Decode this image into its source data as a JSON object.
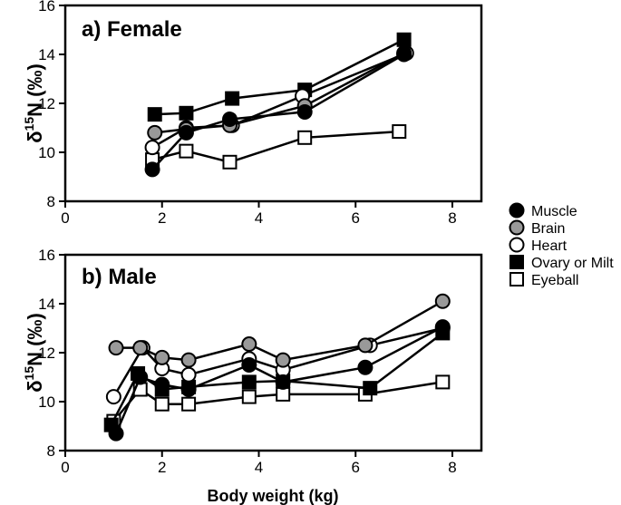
{
  "chart_data": [
    {
      "type": "line",
      "panel_title": "a) Female",
      "ylabel_main": "δ",
      "ylabel_sup": "15",
      "ylabel_rest": "N (‰)",
      "xlim": [
        0,
        8.6
      ],
      "ylim": [
        8,
        16
      ],
      "xticks": [
        0,
        2,
        4,
        6,
        8
      ],
      "yticks": [
        8,
        10,
        12,
        14,
        16
      ],
      "series": [
        {
          "name": "Muscle",
          "marker": "circle",
          "fill": "#000000",
          "x": [
            1.8,
            2.5,
            3.4,
            4.95,
            7.0
          ],
          "y": [
            9.3,
            10.8,
            11.35,
            11.65,
            14.0
          ]
        },
        {
          "name": "Brain",
          "marker": "circle",
          "fill": "#999999",
          "x": [
            1.85,
            2.5,
            3.4,
            4.95,
            7.0
          ],
          "y": [
            10.8,
            10.95,
            11.1,
            11.9,
            14.05
          ]
        },
        {
          "name": "Heart",
          "marker": "circle",
          "fill": "#ffffff",
          "x": [
            1.8,
            2.5,
            3.45,
            4.9,
            7.05
          ],
          "y": [
            10.2,
            11.0,
            11.1,
            12.3,
            14.05
          ]
        },
        {
          "name": "Ovary or Milt",
          "marker": "square",
          "fill": "#000000",
          "x": [
            1.85,
            2.5,
            3.45,
            4.95,
            7.0
          ],
          "y": [
            11.55,
            11.6,
            12.2,
            12.55,
            14.6
          ]
        },
        {
          "name": "Eyeball",
          "marker": "square",
          "fill": "#ffffff",
          "x": [
            1.8,
            2.5,
            3.4,
            4.95,
            6.9
          ],
          "y": [
            9.7,
            10.05,
            9.6,
            10.6,
            10.85
          ]
        }
      ]
    },
    {
      "type": "line",
      "panel_title": "b) Male",
      "xlabel": "Body weight (kg)",
      "ylabel_main": "δ",
      "ylabel_sup": "15",
      "ylabel_rest": "N (‰)",
      "xlim": [
        0,
        8.6
      ],
      "ylim": [
        8,
        16
      ],
      "xticks": [
        0,
        2,
        4,
        6,
        8
      ],
      "yticks": [
        8,
        10,
        12,
        14,
        16
      ],
      "series": [
        {
          "name": "Muscle",
          "marker": "circle",
          "fill": "#000000",
          "x": [
            1.05,
            1.55,
            2.0,
            2.55,
            3.8,
            4.5,
            6.2,
            7.8
          ],
          "y": [
            8.7,
            11.0,
            10.7,
            10.5,
            11.5,
            10.8,
            11.4,
            13.05
          ]
        },
        {
          "name": "Brain",
          "marker": "circle",
          "fill": "#999999",
          "x": [
            1.05,
            1.55,
            2.0,
            2.55,
            3.8,
            4.5,
            6.2,
            7.8
          ],
          "y": [
            12.2,
            12.2,
            11.8,
            11.7,
            12.35,
            11.7,
            12.3,
            14.1
          ]
        },
        {
          "name": "Heart",
          "marker": "circle",
          "fill": "#ffffff",
          "x": [
            1.0,
            1.6,
            2.0,
            2.55,
            3.8,
            4.5,
            6.3,
            7.8
          ],
          "y": [
            10.2,
            12.2,
            11.35,
            11.1,
            11.75,
            11.3,
            12.3,
            13.0
          ]
        },
        {
          "name": "Ovary or Milt",
          "marker": "square",
          "fill": "#000000",
          "x": [
            0.95,
            1.5,
            2.0,
            2.55,
            3.8,
            4.5,
            6.3,
            7.8
          ],
          "y": [
            9.05,
            11.15,
            10.5,
            10.6,
            10.8,
            10.85,
            10.55,
            12.8
          ]
        },
        {
          "name": "Eyeball",
          "marker": "square",
          "fill": "#ffffff",
          "x": [
            1.0,
            1.55,
            2.0,
            2.55,
            3.8,
            4.5,
            6.2,
            7.8
          ],
          "y": [
            9.2,
            10.5,
            9.9,
            9.9,
            10.2,
            10.3,
            10.3,
            10.8
          ]
        }
      ]
    }
  ],
  "legend": {
    "position": "right",
    "items": [
      {
        "label": "Muscle",
        "marker": "circle",
        "fill": "#000000"
      },
      {
        "label": "Brain",
        "marker": "circle",
        "fill": "#999999"
      },
      {
        "label": "Heart",
        "marker": "circle",
        "fill": "#ffffff"
      },
      {
        "label": "Ovary or Milt",
        "marker": "square",
        "fill": "#000000"
      },
      {
        "label": "Eyeball",
        "marker": "square",
        "fill": "#ffffff"
      }
    ]
  }
}
